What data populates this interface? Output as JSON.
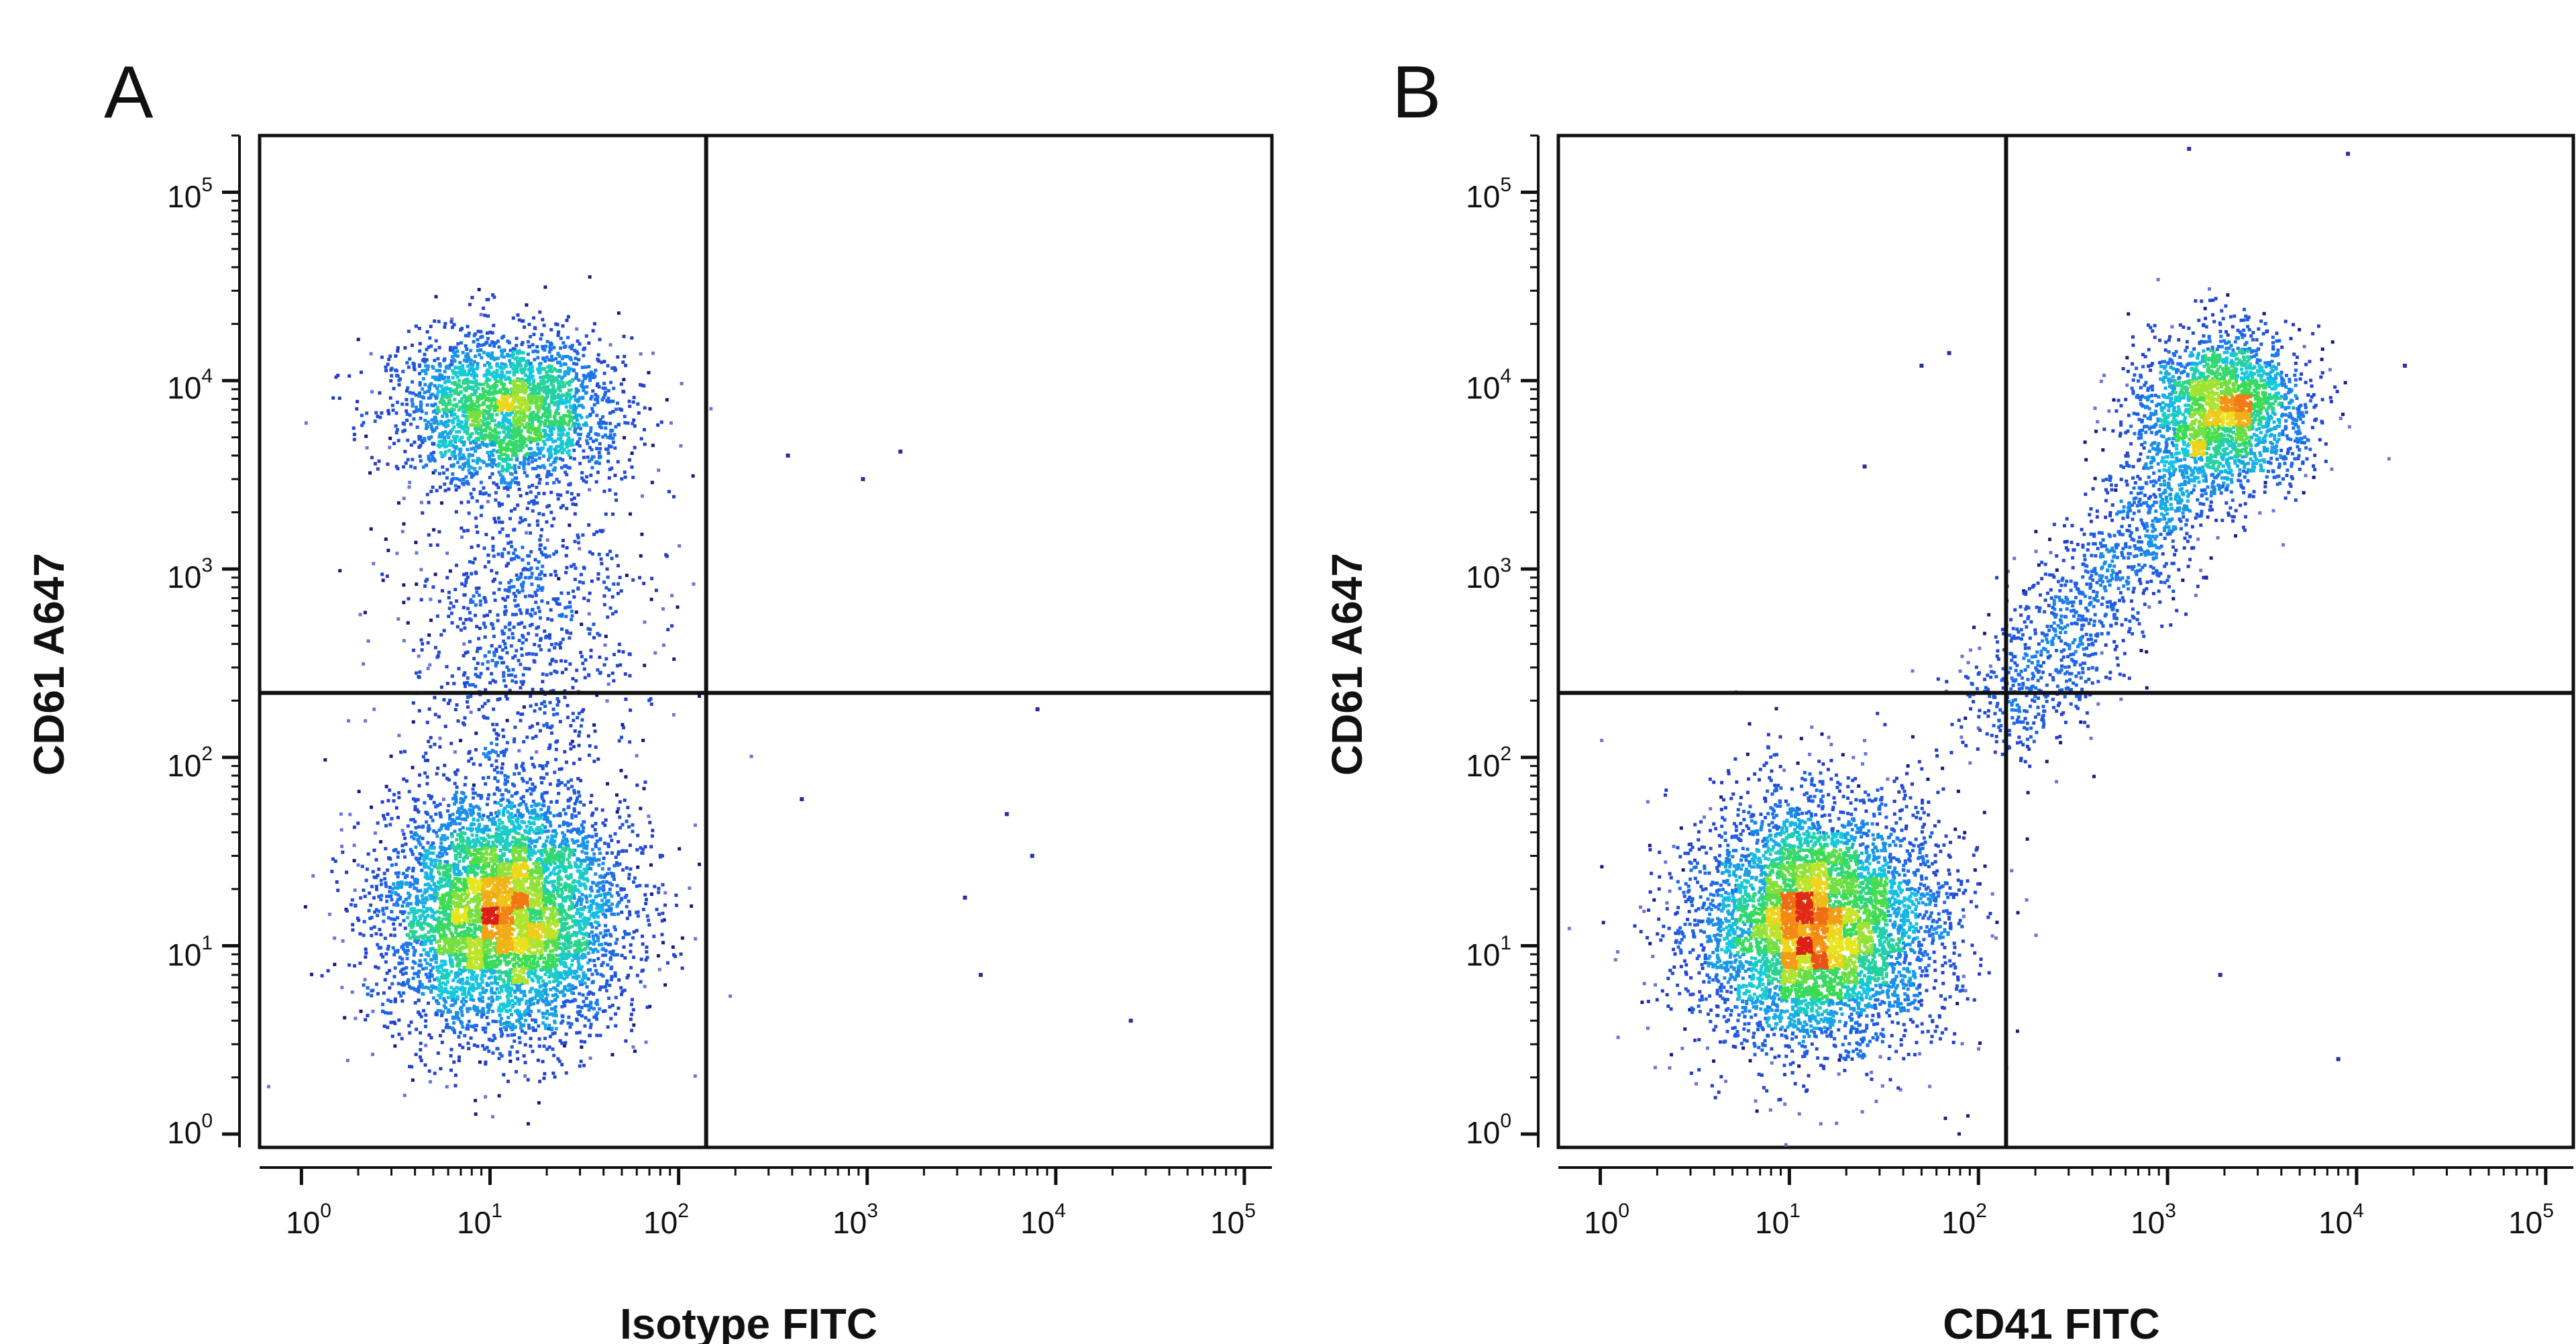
{
  "chart_data": [
    {
      "type": "scatter",
      "panel": "A",
      "xlabel": "Isotype FITC",
      "ylabel": "CD61 A647",
      "xscale": "log",
      "yscale": "log",
      "xlim": [
        0.6,
        140000
      ],
      "ylim": [
        0.85,
        200000
      ],
      "x_tick_labels": [
        {
          "base": "10",
          "exp": "0"
        },
        {
          "base": "10",
          "exp": "1"
        },
        {
          "base": "10",
          "exp": "2"
        },
        {
          "base": "10",
          "exp": "3"
        },
        {
          "base": "10",
          "exp": "4"
        },
        {
          "base": "10",
          "exp": "5"
        }
      ],
      "y_tick_labels": [
        {
          "base": "10",
          "exp": "0"
        },
        {
          "base": "10",
          "exp": "1"
        },
        {
          "base": "10",
          "exp": "2"
        },
        {
          "base": "10",
          "exp": "3"
        },
        {
          "base": "10",
          "exp": "4"
        },
        {
          "base": "10",
          "exp": "5"
        }
      ],
      "quadrant_gate": {
        "x": 140,
        "y": 220
      },
      "grid": false,
      "colormap": "density (blue → cyan → green → yellow → red)",
      "populations": [
        {
          "center_x": 12,
          "center_y": 15,
          "spread_log_x": 0.32,
          "spread_log_y": 0.33,
          "fraction": 0.62
        },
        {
          "center_x": 12,
          "center_y": 7000,
          "spread_log_x": 0.3,
          "spread_log_y": 0.2,
          "fraction": 0.28
        },
        {
          "center_x": 14,
          "center_y": 500,
          "spread_log_x": 0.33,
          "spread_log_y": 0.45,
          "fraction": 0.1
        }
      ],
      "outlier_points": [
        {
          "x": 380,
          "y": 4000
        },
        {
          "x": 950,
          "y": 3000
        },
        {
          "x": 1500,
          "y": 4200
        },
        {
          "x": 3300,
          "y": 18
        },
        {
          "x": 5500,
          "y": 50
        },
        {
          "x": 4000,
          "y": 7
        },
        {
          "x": 25000,
          "y": 4
        },
        {
          "x": 8000,
          "y": 180
        },
        {
          "x": 450,
          "y": 60
        },
        {
          "x": 7500,
          "y": 30
        }
      ]
    },
    {
      "type": "scatter",
      "panel": "B",
      "xlabel": "CD41 FITC",
      "ylabel": "CD61 A647",
      "xscale": "log",
      "yscale": "log",
      "xlim": [
        0.6,
        140000
      ],
      "ylim": [
        0.85,
        200000
      ],
      "x_tick_labels": [
        {
          "base": "10",
          "exp": "0"
        },
        {
          "base": "10",
          "exp": "1"
        },
        {
          "base": "10",
          "exp": "2"
        },
        {
          "base": "10",
          "exp": "3"
        },
        {
          "base": "10",
          "exp": "4"
        },
        {
          "base": "10",
          "exp": "5"
        }
      ],
      "y_tick_labels": [
        {
          "base": "10",
          "exp": "0"
        },
        {
          "base": "10",
          "exp": "1"
        },
        {
          "base": "10",
          "exp": "2"
        },
        {
          "base": "10",
          "exp": "3"
        },
        {
          "base": "10",
          "exp": "4"
        },
        {
          "base": "10",
          "exp": "5"
        }
      ],
      "quadrant_gate": {
        "x": 140,
        "y": 220
      },
      "grid": false,
      "colormap": "density (blue → cyan → green → yellow → red)",
      "populations": [
        {
          "center_x": 14,
          "center_y": 13,
          "spread_log_x": 0.32,
          "spread_log_y": 0.32,
          "fraction": 0.62
        },
        {
          "center_x": 2000,
          "center_y": 7000,
          "spread_log_x": 0.22,
          "spread_log_y": 0.2,
          "fraction": 0.24
        },
        {
          "trail_from": [
            140,
            150
          ],
          "trail_to": [
            1500,
            4500
          ],
          "fraction": 0.14
        }
      ],
      "outlier_points": [
        {
          "x": 1300,
          "y": 170000
        },
        {
          "x": 9000,
          "y": 160000
        },
        {
          "x": 50,
          "y": 12000
        },
        {
          "x": 70,
          "y": 14000
        },
        {
          "x": 25,
          "y": 3500
        },
        {
          "x": 1900,
          "y": 7
        },
        {
          "x": 8000,
          "y": 2.5
        },
        {
          "x": 18000,
          "y": 12000
        },
        {
          "x": 1600,
          "y": 900
        }
      ]
    }
  ],
  "panels": {
    "a": {
      "letter": "A",
      "xlabel": "Isotype FITC",
      "ylabel": "CD61 A647"
    },
    "b": {
      "letter": "B",
      "xlabel": "CD41 FITC",
      "ylabel": "CD61 A647"
    }
  }
}
